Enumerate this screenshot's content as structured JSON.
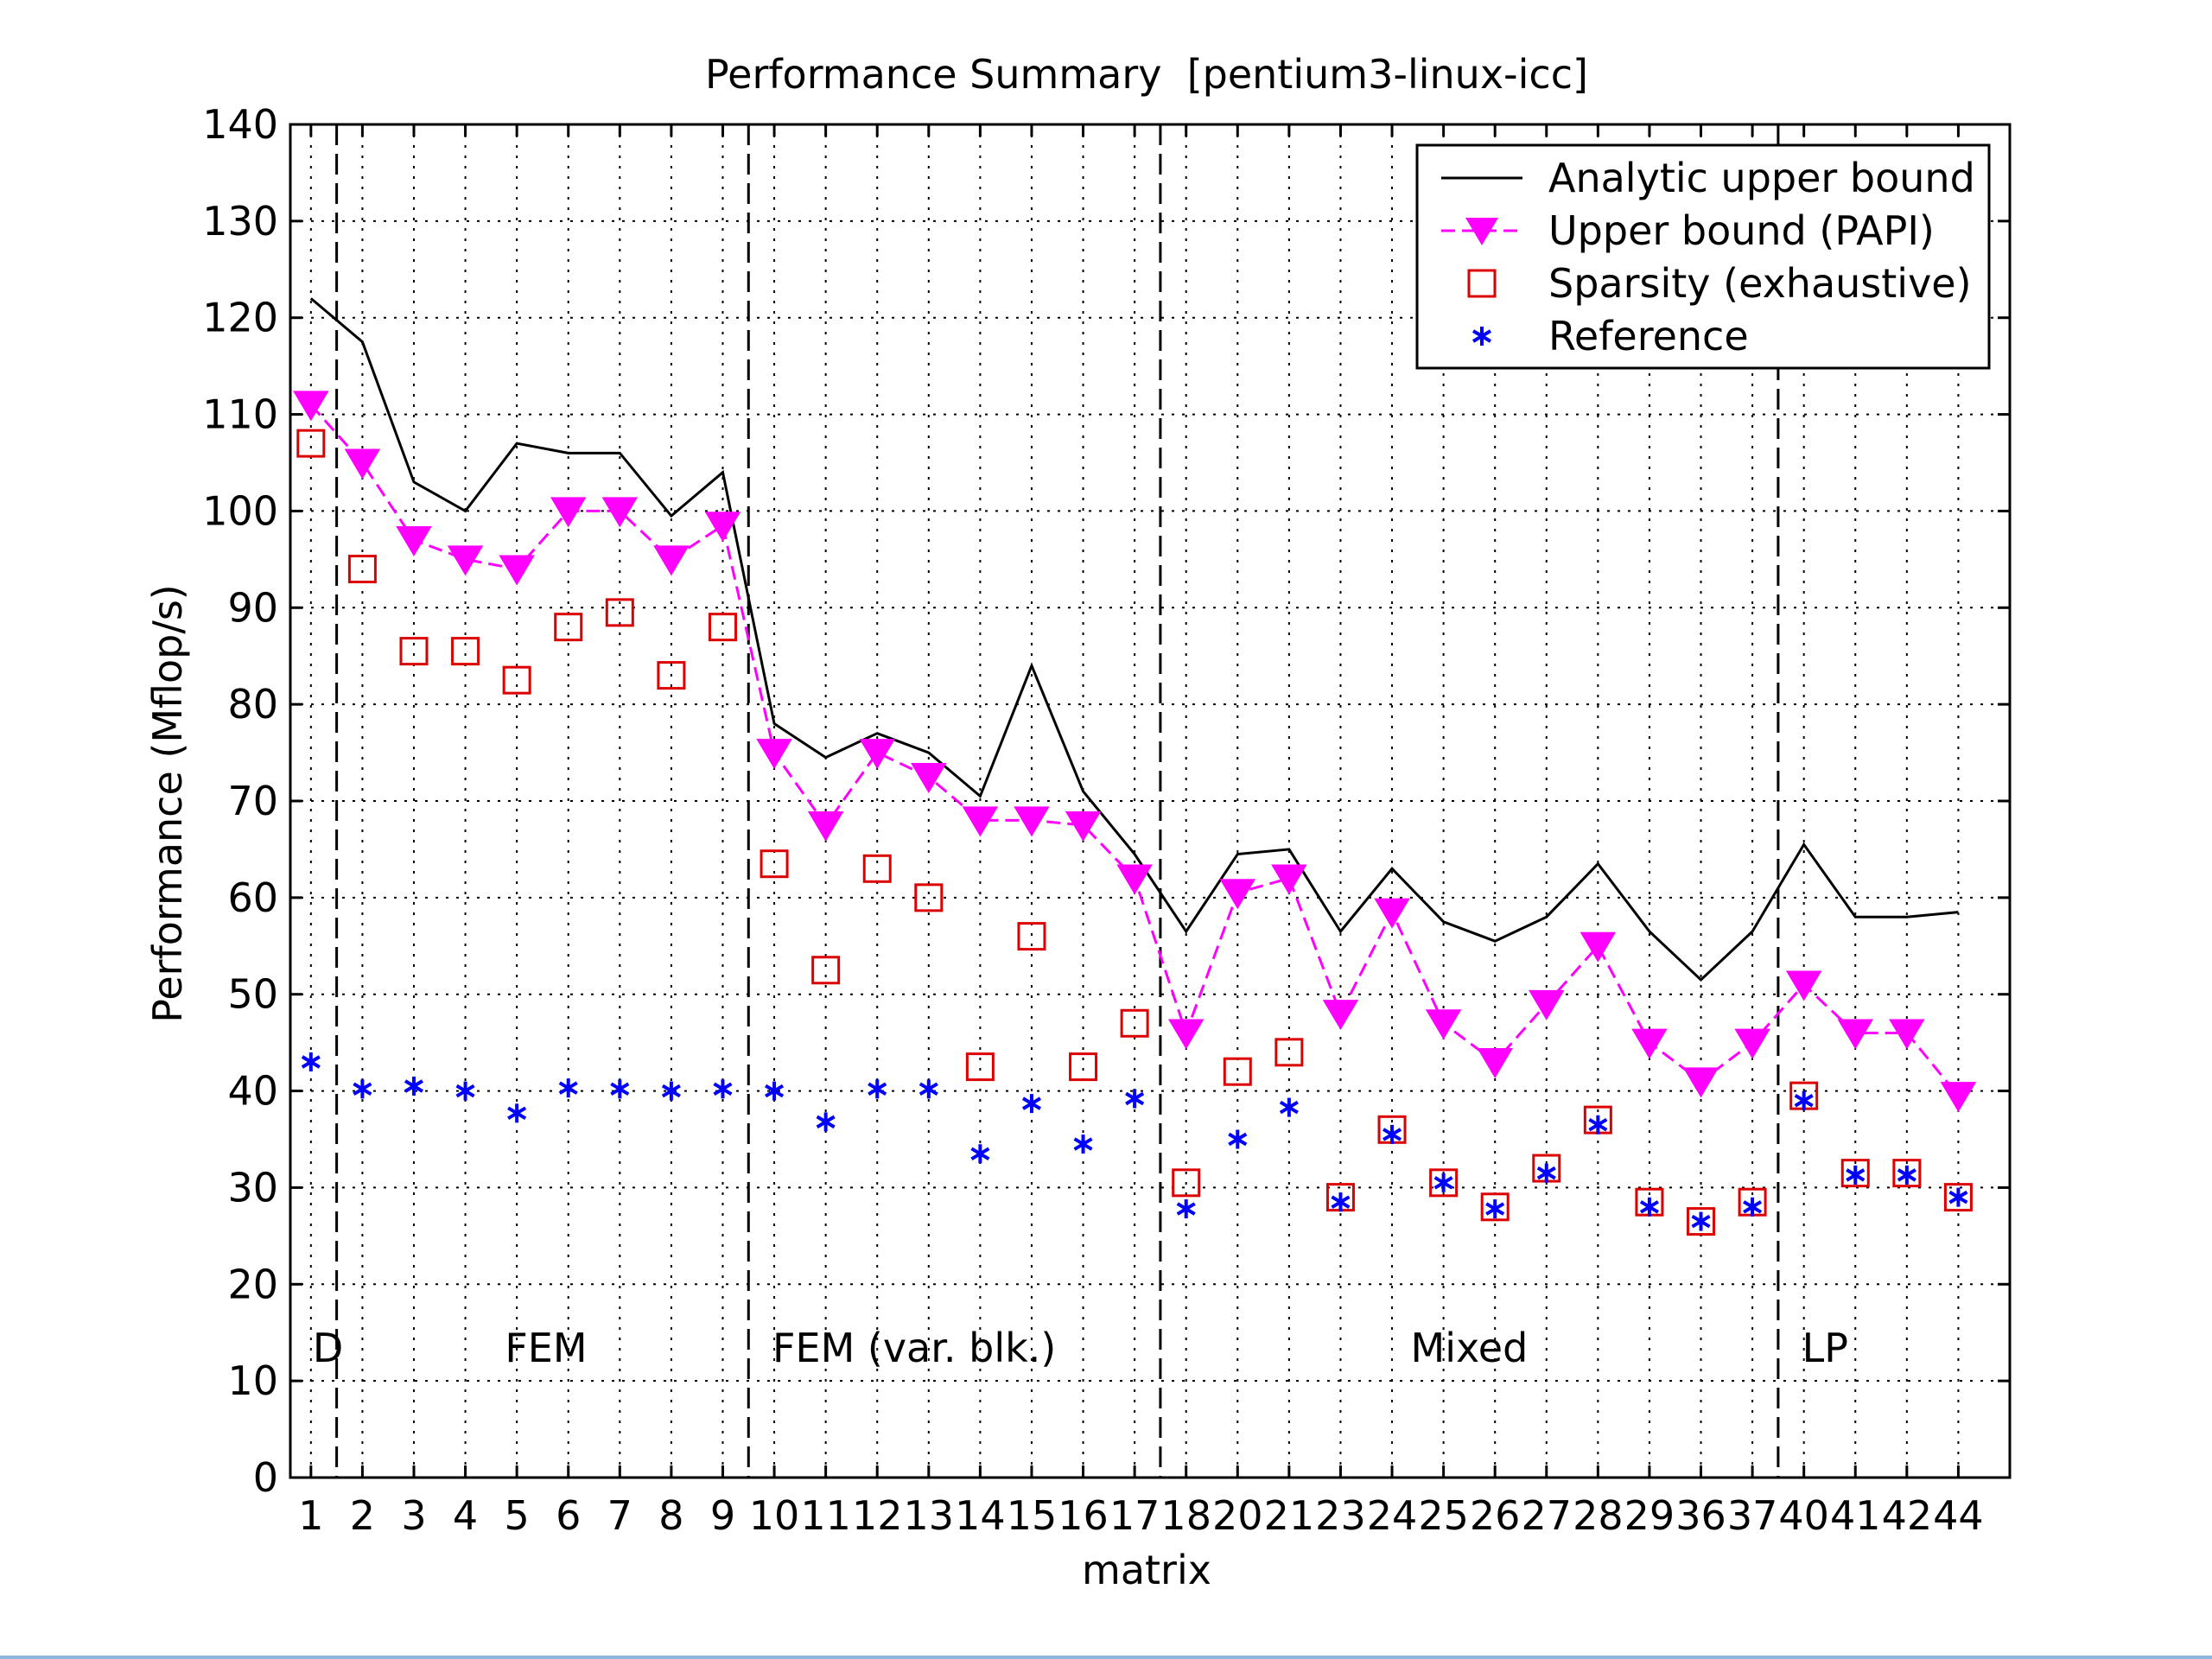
{
  "chart_data": {
    "type": "line",
    "title": "Performance Summary  [pentium3-linux-icc]",
    "xlabel": "matrix",
    "ylabel": "Performance (Mflop/s)",
    "ylim": [
      0,
      140
    ],
    "yticks": [
      0,
      10,
      20,
      30,
      40,
      50,
      60,
      70,
      80,
      90,
      100,
      110,
      120,
      130,
      140
    ],
    "grid": true,
    "legend_position": "top-right",
    "categories": [
      "1",
      "2",
      "3",
      "4",
      "5",
      "6",
      "7",
      "8",
      "9",
      "10",
      "11",
      "12",
      "13",
      "14",
      "15",
      "16",
      "17",
      "18",
      "20",
      "21",
      "23",
      "24",
      "25",
      "26",
      "27",
      "28",
      "29",
      "36",
      "37",
      "40",
      "41",
      "42",
      "44"
    ],
    "series": [
      {
        "name": "Analytic upper bound",
        "style": "solid line",
        "color": "#000000",
        "values": [
          122,
          117.5,
          103,
          100,
          107,
          106,
          106,
          99.5,
          104,
          78,
          74.5,
          77,
          75,
          70.5,
          84,
          71,
          64.5,
          56.5,
          64.5,
          65,
          56.5,
          63,
          57.5,
          55.5,
          58,
          63.5,
          56.5,
          51.5,
          56.5,
          65.5,
          58,
          58,
          58.5
        ]
      },
      {
        "name": "Upper bound (PAPI)",
        "style": "dashed line with downward triangles",
        "color": "#ff00ff",
        "values": [
          111,
          105,
          97,
          95,
          94,
          100,
          100,
          95,
          98.5,
          75,
          67.5,
          75,
          72.5,
          68,
          68,
          67.5,
          62,
          46,
          60.5,
          62,
          48,
          58.5,
          47,
          43,
          49,
          55,
          45,
          41,
          45,
          51,
          46,
          46,
          39.5
        ]
      },
      {
        "name": "Sparsity (exhaustive)",
        "style": "square markers",
        "color": "#dd0000",
        "values": [
          107,
          94,
          85.5,
          85.5,
          82.5,
          88,
          89.5,
          83,
          88,
          63.5,
          52.5,
          63,
          60,
          42.5,
          56,
          42.5,
          47,
          30.5,
          42,
          44,
          29,
          36,
          30.5,
          28,
          32,
          37,
          28.5,
          26.5,
          28.5,
          39.5,
          31.5,
          31.5,
          29
        ]
      },
      {
        "name": "Reference",
        "style": "asterisk markers",
        "color": "#0000ff",
        "values": [
          43,
          40.2,
          40.5,
          40,
          37.7,
          40.3,
          40.2,
          40,
          40.2,
          40,
          36.8,
          40.2,
          40.2,
          33.5,
          38.7,
          34.5,
          39.2,
          27.8,
          35,
          38.3,
          28.5,
          35.5,
          30.5,
          27.8,
          31.5,
          36.5,
          28,
          26.5,
          28,
          39,
          31.3,
          31.3,
          29
        ]
      }
    ],
    "groups": [
      {
        "label": "D",
        "first_index": 0,
        "last_index": 0
      },
      {
        "label": "FEM",
        "first_index": 1,
        "last_index": 8
      },
      {
        "label": "FEM (var. blk.)",
        "first_index": 9,
        "last_index": 16
      },
      {
        "label": "Mixed",
        "first_index": 17,
        "last_index": 28
      },
      {
        "label": "LP",
        "first_index": 29,
        "last_index": 32
      }
    ]
  }
}
